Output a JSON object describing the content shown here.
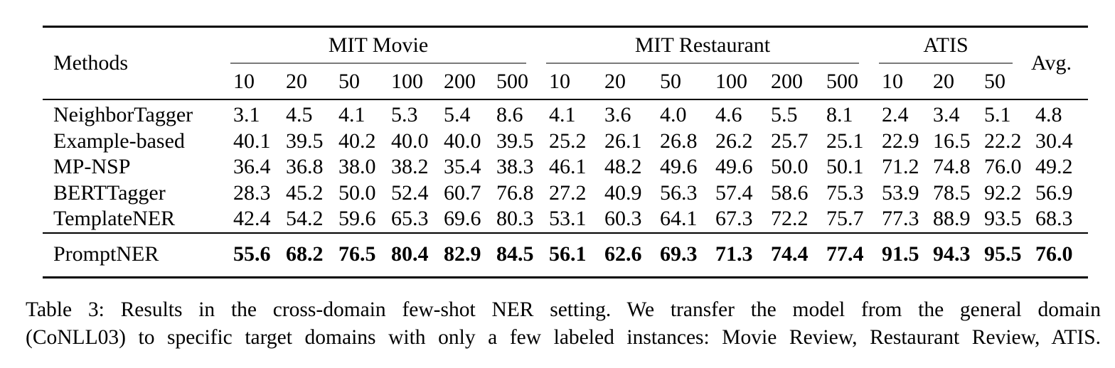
{
  "page": {
    "background": "#ffffff",
    "text_color": "#000000",
    "rule_color": "#000000",
    "cmidrule_color": "#7a7a7a"
  },
  "table": {
    "methods_header": "Methods",
    "avg_header": "Avg.",
    "groups": [
      {
        "label": "MIT Movie",
        "cols": [
          "10",
          "20",
          "50",
          "100",
          "200",
          "500"
        ]
      },
      {
        "label": "MIT Restaurant",
        "cols": [
          "10",
          "20",
          "50",
          "100",
          "200",
          "500"
        ]
      },
      {
        "label": "ATIS",
        "cols": [
          "10",
          "20",
          "50"
        ]
      }
    ],
    "rows": [
      {
        "method": "NeighborTagger",
        "values": [
          "3.1",
          "4.5",
          "4.1",
          "5.3",
          "5.4",
          "8.6",
          "4.1",
          "3.6",
          "4.0",
          "4.6",
          "5.5",
          "8.1",
          "2.4",
          "3.4",
          "5.1",
          "4.8"
        ]
      },
      {
        "method": "Example-based",
        "values": [
          "40.1",
          "39.5",
          "40.2",
          "40.0",
          "40.0",
          "39.5",
          "25.2",
          "26.1",
          "26.8",
          "26.2",
          "25.7",
          "25.1",
          "22.9",
          "16.5",
          "22.2",
          "30.4"
        ]
      },
      {
        "method": "MP-NSP",
        "values": [
          "36.4",
          "36.8",
          "38.0",
          "38.2",
          "35.4",
          "38.3",
          "46.1",
          "48.2",
          "49.6",
          "49.6",
          "50.0",
          "50.1",
          "71.2",
          "74.8",
          "76.0",
          "49.2"
        ]
      },
      {
        "method": "BERTTagger",
        "values": [
          "28.3",
          "45.2",
          "50.0",
          "52.4",
          "60.7",
          "76.8",
          "27.2",
          "40.9",
          "56.3",
          "57.4",
          "58.6",
          "75.3",
          "53.9",
          "78.5",
          "92.2",
          "56.9"
        ]
      },
      {
        "method": "TemplateNER",
        "values": [
          "42.4",
          "54.2",
          "59.6",
          "65.3",
          "69.6",
          "80.3",
          "53.1",
          "60.3",
          "64.1",
          "67.3",
          "72.2",
          "75.7",
          "77.3",
          "88.9",
          "93.5",
          "68.3"
        ]
      }
    ],
    "highlight_row": {
      "method": "PromptNER",
      "values": [
        "55.6",
        "68.2",
        "76.5",
        "80.4",
        "82.9",
        "84.5",
        "56.1",
        "62.6",
        "69.3",
        "71.3",
        "74.4",
        "77.4",
        "91.5",
        "94.3",
        "95.5",
        "76.0"
      ]
    }
  },
  "caption": {
    "line1": "Table 3: Results in the cross-domain few-shot NER setting. We transfer the model from the general domain",
    "line2": "(CoNLL03) to specific target domains with only a few labeled instances: Movie Review, Restaurant Review, ATIS."
  }
}
